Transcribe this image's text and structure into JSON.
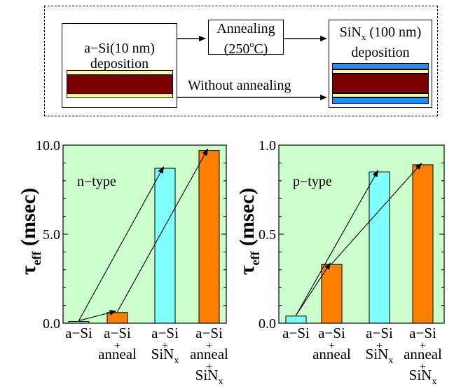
{
  "diagram": {
    "step1": {
      "line1": "a−Si(10 nm)",
      "line2": "deposition"
    },
    "step2": {
      "line1": "Annealing",
      "temp_pre": "(250",
      "temp_sup": "o",
      "temp_post": "C)"
    },
    "step3": {
      "line1_main": "SiN",
      "line1_sub": "x",
      "line1_rest": " (100 nm)",
      "line2": "deposition"
    },
    "bypass_label": "Without annealing",
    "colors": {
      "substrate": "#7a0000",
      "asi_layer": "#fff79a",
      "sinx_layer": "#1f8fff"
    }
  },
  "chart_data": [
    {
      "type": "bar",
      "annotation": "n−type",
      "ylabel": {
        "main": "τ",
        "sub": "eff",
        "rest": " (msec)"
      },
      "ylim": [
        0,
        10
      ],
      "yticks": [
        "0.0",
        "5.0",
        "10.0"
      ],
      "categories": [
        {
          "lines": [
            "a−Si"
          ]
        },
        {
          "lines": [
            "a−Si",
            "+",
            "anneal"
          ]
        },
        {
          "lines": [
            "a−Si",
            "+",
            "SiNx"
          ]
        },
        {
          "lines": [
            "a−Si",
            "+",
            "anneal",
            "+",
            "SiNx"
          ]
        }
      ],
      "values": [
        0.1,
        0.6,
        8.7,
        9.7
      ],
      "bar_colors": [
        "#80ffff",
        "#ff8000",
        "#80ffff",
        "#ff8000"
      ]
    },
    {
      "type": "bar",
      "annotation": "p−type",
      "ylabel": {
        "main": "τ",
        "sub": "eff",
        "rest": " (msec)"
      },
      "ylim": [
        0,
        1.0
      ],
      "yticks": [
        "0.0",
        "0.5",
        "1.0"
      ],
      "categories": [
        {
          "lines": [
            "a−Si"
          ]
        },
        {
          "lines": [
            "a−Si",
            "+",
            "anneal"
          ]
        },
        {
          "lines": [
            "a−Si",
            "+",
            "SiNx"
          ]
        },
        {
          "lines": [
            "a−Si",
            "+",
            "anneal",
            "+",
            "SiNx"
          ]
        }
      ],
      "values": [
        0.04,
        0.33,
        0.85,
        0.89
      ],
      "bar_colors": [
        "#80ffff",
        "#ff8000",
        "#80ffff",
        "#ff8000"
      ]
    }
  ],
  "colors": {
    "plot_bg": "#ccffcc"
  }
}
